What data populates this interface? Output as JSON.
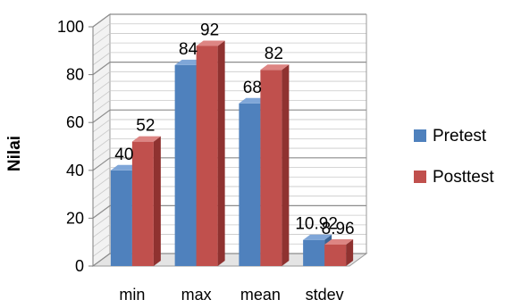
{
  "chart_data": {
    "type": "bar",
    "categories": [
      "min",
      "max",
      "mean",
      "stdev"
    ],
    "series": [
      {
        "name": "Pretest",
        "values": [
          40,
          84,
          68,
          10.92
        ],
        "labels": [
          "40",
          "84",
          "68",
          "10.92"
        ],
        "color": "#4f81bd",
        "side_color": "#3b6494",
        "top_color": "#7fa6d8"
      },
      {
        "name": "Posttest",
        "values": [
          52,
          92,
          82,
          8.96
        ],
        "labels": [
          "52",
          "92",
          "82",
          "8.96"
        ],
        "color": "#c0504d",
        "side_color": "#8f3230",
        "top_color": "#dd8583"
      }
    ],
    "ylabel": "Nilai",
    "xlabel": "",
    "ylim": [
      0,
      100
    ],
    "yticks": [
      0,
      20,
      40,
      60,
      80,
      100
    ],
    "grid": true,
    "legend_position": "right",
    "three_d": true
  }
}
